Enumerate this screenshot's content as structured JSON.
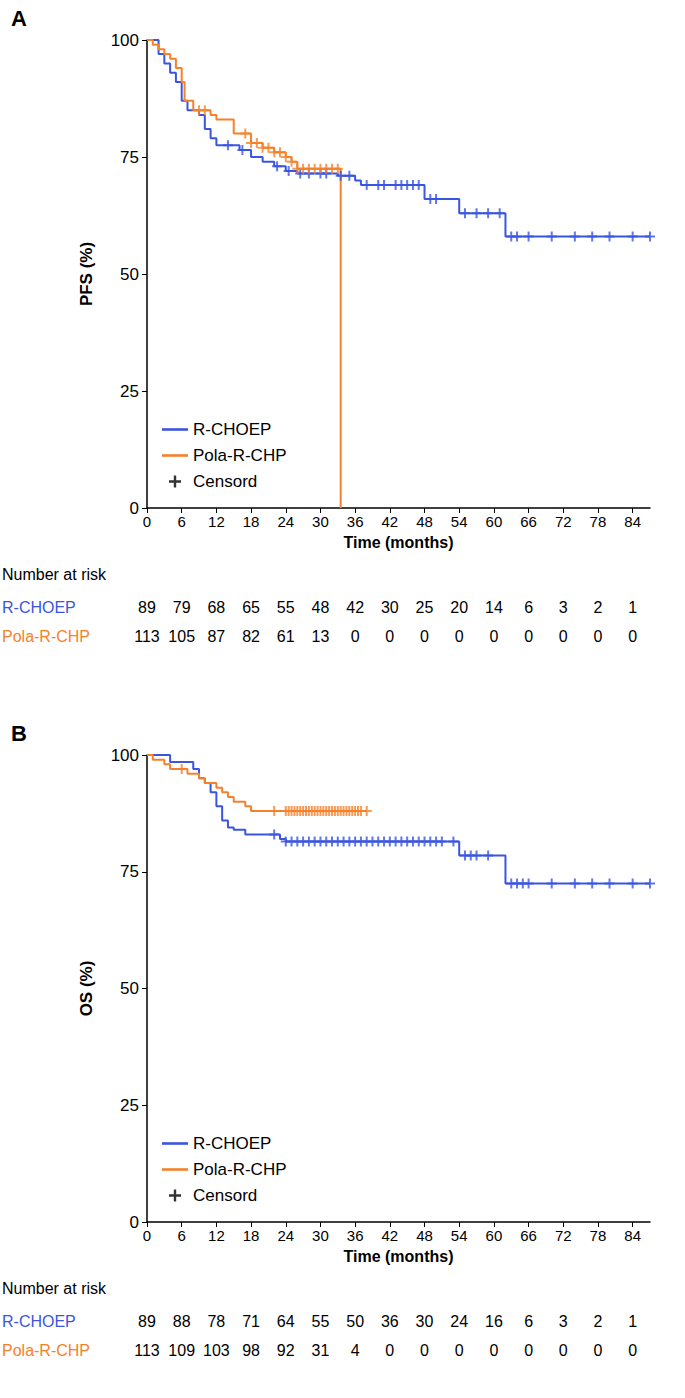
{
  "chart_data": [
    {
      "type": "line",
      "title": "A",
      "x_label": "Time (months)",
      "y_label": "PFS (%)",
      "xlim": [
        0,
        87
      ],
      "xticks": [
        0,
        6,
        12,
        18,
        24,
        30,
        36,
        42,
        48,
        54,
        60,
        66,
        72,
        78,
        84
      ],
      "ylim": [
        0,
        100
      ],
      "yticks": [
        0,
        25,
        50,
        75,
        100
      ],
      "grid": false,
      "legend": "bottom-left",
      "line_style": "step",
      "marker": "+",
      "censor_label": "Censord",
      "risk_table_title": "Number at risk",
      "series": [
        {
          "name": "R-CHOEP",
          "color": "#3a55e0",
          "x": [
            0,
            2,
            3,
            4,
            5,
            6,
            7,
            9,
            10,
            11,
            12,
            16,
            18,
            20,
            22,
            24,
            26,
            33,
            36,
            37,
            48,
            54,
            62,
            87
          ],
          "values": [
            100,
            97,
            95,
            93,
            91,
            87,
            85,
            84,
            81,
            79,
            77.5,
            76.5,
            75,
            74,
            73,
            72,
            71.5,
            71,
            70,
            69,
            66,
            63,
            58,
            58
          ],
          "censored": [
            14,
            16.5,
            22.5,
            24.5,
            26.5,
            28,
            30,
            31,
            33.5,
            35,
            38,
            40,
            41,
            43,
            44,
            45,
            46,
            47,
            49,
            50,
            55,
            57,
            59,
            61,
            63,
            64,
            66,
            70,
            74,
            77,
            80,
            84,
            87
          ],
          "at_risk": [
            89,
            79,
            68,
            65,
            55,
            48,
            42,
            30,
            25,
            20,
            14,
            6,
            3,
            2,
            1
          ]
        },
        {
          "name": "Pola-R-CHP",
          "color": "#f5812b",
          "x": [
            0,
            1,
            2,
            3,
            4,
            5,
            6,
            6.5,
            8,
            11,
            12,
            15,
            18,
            20,
            22,
            24,
            25,
            26,
            33.5
          ],
          "values": [
            100,
            99,
            98,
            97,
            96,
            94,
            91,
            87,
            85,
            84,
            83,
            80,
            78,
            77,
            76,
            75,
            74,
            72.5,
            0
          ],
          "censored": [
            9,
            10,
            17,
            18,
            19,
            20,
            21,
            22,
            23,
            24,
            25,
            26,
            27,
            28,
            29,
            30,
            31,
            32,
            33
          ],
          "at_risk": [
            113,
            105,
            87,
            82,
            61,
            13,
            0,
            0,
            0,
            0,
            0,
            0,
            0,
            0,
            0
          ]
        }
      ]
    },
    {
      "type": "line",
      "title": "B",
      "x_label": "Time (months)",
      "y_label": "OS (%)",
      "xlim": [
        0,
        87
      ],
      "xticks": [
        0,
        6,
        12,
        18,
        24,
        30,
        36,
        42,
        48,
        54,
        60,
        66,
        72,
        78,
        84
      ],
      "ylim": [
        0,
        100
      ],
      "yticks": [
        0,
        25,
        50,
        75,
        100
      ],
      "grid": false,
      "legend": "bottom-left",
      "line_style": "step",
      "marker": "+",
      "censor_label": "Censord",
      "risk_table_title": "Number at risk",
      "series": [
        {
          "name": "R-CHOEP",
          "color": "#3a55e0",
          "x": [
            0,
            4,
            8,
            9,
            10,
            11,
            12,
            13,
            14,
            15,
            17,
            23,
            24,
            54,
            62,
            87
          ],
          "values": [
            100,
            98.5,
            97,
            95,
            94,
            92,
            89,
            86,
            84.5,
            84,
            83,
            82,
            81.5,
            78.5,
            72.5,
            72.5
          ],
          "censored": [
            22,
            24,
            25,
            26,
            27,
            28,
            29,
            30,
            31,
            32,
            33,
            34,
            35,
            36,
            37,
            38,
            39,
            40,
            41,
            42,
            43,
            44,
            45,
            46,
            47,
            48,
            49,
            50,
            51,
            53,
            55,
            56,
            57,
            59,
            63,
            64,
            65,
            66,
            70,
            74,
            77,
            80,
            84,
            87
          ],
          "at_risk": [
            89,
            88,
            78,
            71,
            64,
            55,
            50,
            36,
            30,
            24,
            16,
            6,
            3,
            2,
            1
          ]
        },
        {
          "name": "Pola-R-CHP",
          "color": "#f5812b",
          "x": [
            0,
            1,
            3,
            4,
            7,
            9,
            10,
            12,
            13,
            14,
            15,
            17,
            18,
            38
          ],
          "values": [
            100,
            99,
            98,
            97,
            96,
            95,
            94,
            93,
            92,
            91,
            90,
            89,
            88,
            88
          ],
          "censored": [
            6,
            22,
            24,
            24.5,
            25,
            25.5,
            26,
            26.5,
            27,
            27.5,
            28,
            28.5,
            29,
            29.5,
            30,
            30.5,
            31,
            31.5,
            32,
            32.5,
            33,
            33.5,
            34,
            34.5,
            35,
            35.5,
            36,
            36.5,
            37,
            38
          ],
          "at_risk": [
            113,
            109,
            103,
            98,
            92,
            31,
            4,
            0,
            0,
            0,
            0,
            0,
            0,
            0,
            0
          ]
        }
      ]
    }
  ]
}
